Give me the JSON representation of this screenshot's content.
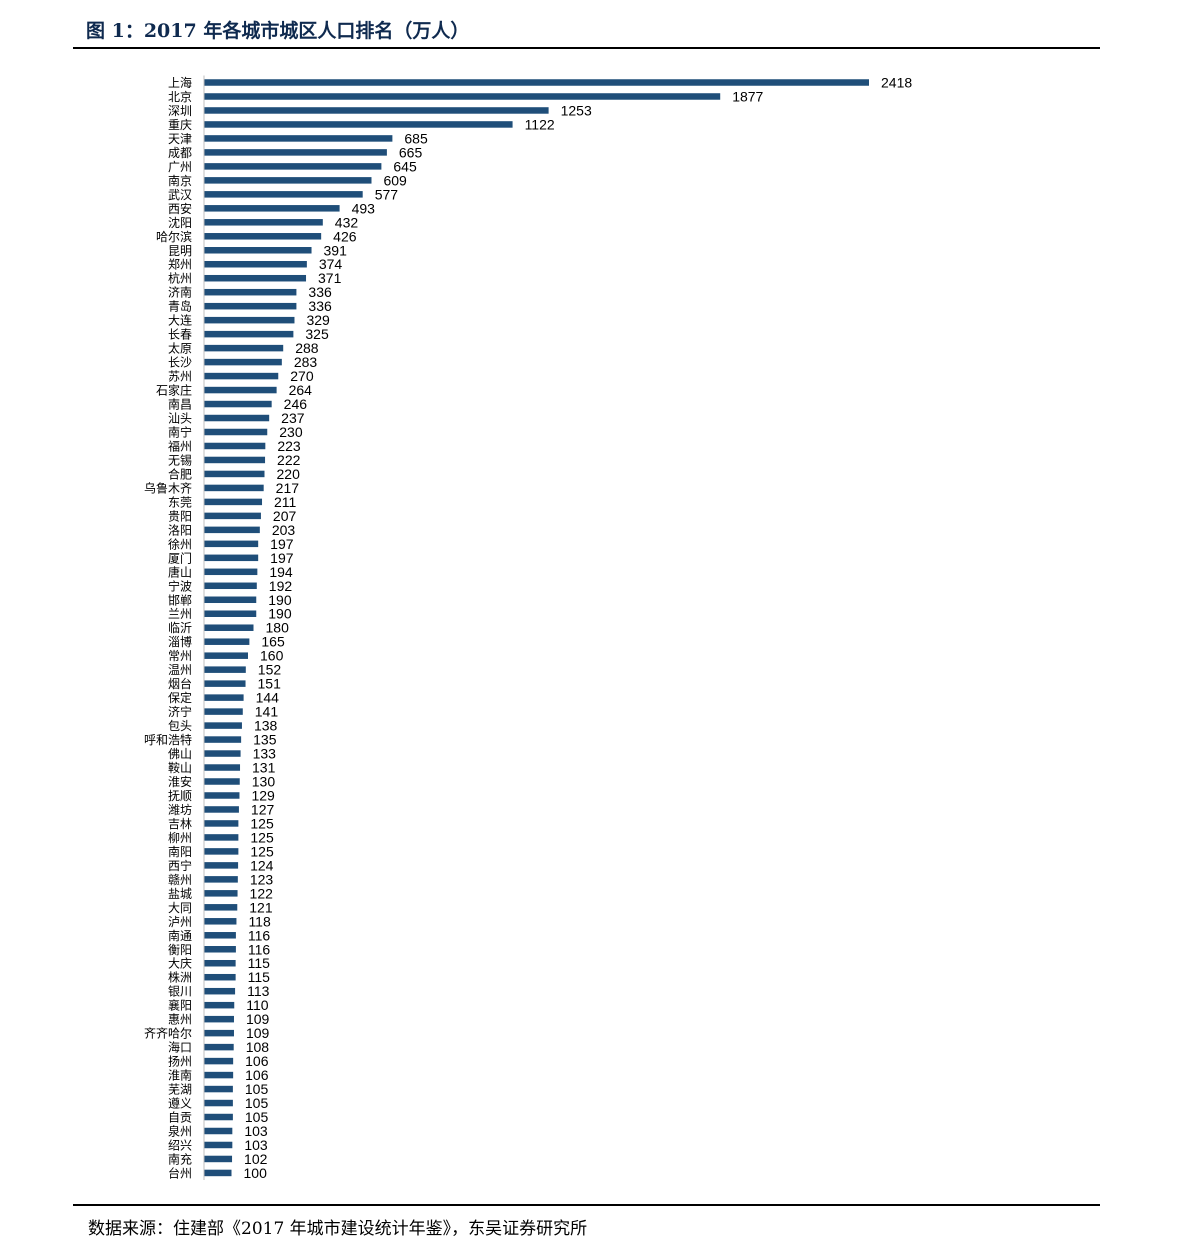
{
  "title": "图 1：2017 年各城市城区人口排名（万人）",
  "source": "数据来源：住建部《2017 年城市建设统计年鉴》，东吴证券研究所",
  "colors": {
    "bar": "#1f4e79",
    "title": "#0f2a4f",
    "axis": "#bfbfbf"
  },
  "chart_data": {
    "type": "bar",
    "orientation": "horizontal",
    "title": "2017 年各城市城区人口排名（万人）",
    "xlabel": "",
    "ylabel": "",
    "xlim": [
      0,
      2418
    ],
    "grid": false,
    "legend": "none",
    "categories": [
      "上海",
      "北京",
      "深圳",
      "重庆",
      "天津",
      "成都",
      "广州",
      "南京",
      "武汉",
      "西安",
      "沈阳",
      "哈尔滨",
      "昆明",
      "郑州",
      "杭州",
      "济南",
      "青岛",
      "大连",
      "长春",
      "太原",
      "长沙",
      "苏州",
      "石家庄",
      "南昌",
      "汕头",
      "南宁",
      "福州",
      "无锡",
      "合肥",
      "乌鲁木齐",
      "东莞",
      "贵阳",
      "洛阳",
      "徐州",
      "厦门",
      "唐山",
      "宁波",
      "邯郸",
      "兰州",
      "临沂",
      "淄博",
      "常州",
      "温州",
      "烟台",
      "保定",
      "济宁",
      "包头",
      "呼和浩特",
      "佛山",
      "鞍山",
      "淮安",
      "抚顺",
      "潍坊",
      "吉林",
      "柳州",
      "南阳",
      "西宁",
      "赣州",
      "盐城",
      "大同",
      "泸州",
      "南通",
      "衡阳",
      "大庆",
      "株洲",
      "银川",
      "襄阳",
      "惠州",
      "齐齐哈尔",
      "海口",
      "扬州",
      "淮南",
      "芜湖",
      "遵义",
      "自贡",
      "泉州",
      "绍兴",
      "南充",
      "台州"
    ],
    "values": [
      2418,
      1877,
      1253,
      1122,
      685,
      665,
      645,
      609,
      577,
      493,
      432,
      426,
      391,
      374,
      371,
      336,
      336,
      329,
      325,
      288,
      283,
      270,
      264,
      246,
      237,
      230,
      223,
      222,
      220,
      217,
      211,
      207,
      203,
      197,
      197,
      194,
      192,
      190,
      190,
      180,
      165,
      160,
      152,
      151,
      144,
      141,
      138,
      135,
      133,
      131,
      130,
      129,
      127,
      125,
      125,
      125,
      124,
      123,
      122,
      121,
      118,
      116,
      116,
      115,
      115,
      113,
      110,
      109,
      109,
      108,
      106,
      106,
      105,
      105,
      105,
      103,
      103,
      102,
      100
    ]
  }
}
